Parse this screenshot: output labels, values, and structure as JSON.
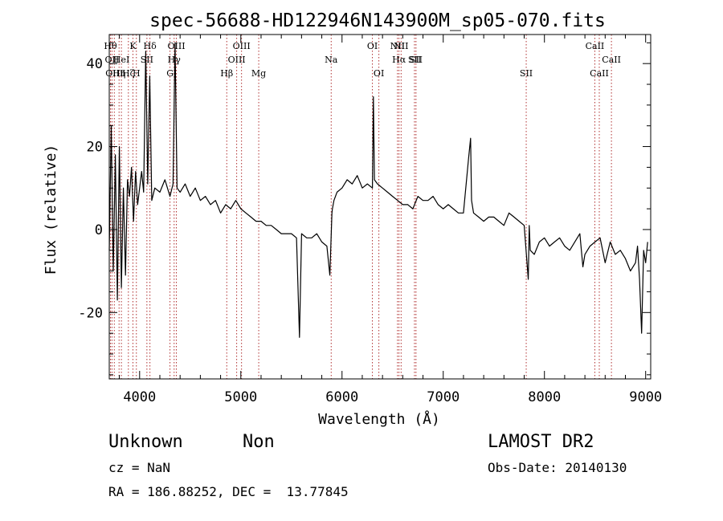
{
  "chart_data": {
    "type": "line",
    "title": "spec-56688-HD122946N143900M_sp05-070.fits",
    "xlabel": "Wavelength (Å)",
    "ylabel": "Flux (relative)",
    "xlim": [
      3700,
      9050
    ],
    "ylim": [
      -36,
      47
    ],
    "xticks": [
      4000,
      5000,
      6000,
      7000,
      8000,
      9000
    ],
    "yticks": [
      -20,
      0,
      20,
      40
    ],
    "grid": false,
    "series": [
      {
        "color": "#000000",
        "x": [
          3700,
          3720,
          3740,
          3760,
          3780,
          3800,
          3820,
          3840,
          3860,
          3880,
          3900,
          3920,
          3940,
          3960,
          3980,
          4000,
          4020,
          4040,
          4060,
          4080,
          4100,
          4120,
          4150,
          4200,
          4250,
          4300,
          4330,
          4350,
          4370,
          4400,
          4450,
          4500,
          4550,
          4600,
          4650,
          4700,
          4750,
          4800,
          4850,
          4900,
          4950,
          5000,
          5050,
          5100,
          5150,
          5200,
          5250,
          5300,
          5350,
          5400,
          5450,
          5500,
          5550,
          5580,
          5600,
          5650,
          5700,
          5750,
          5800,
          5850,
          5880,
          5900,
          5905,
          5920,
          5950,
          6000,
          6050,
          6100,
          6150,
          6200,
          6250,
          6300,
          6310,
          6320,
          6350,
          6400,
          6450,
          6500,
          6550,
          6600,
          6650,
          6700,
          6750,
          6800,
          6850,
          6900,
          6950,
          7000,
          7050,
          7100,
          7150,
          7200,
          7250,
          7270,
          7280,
          7300,
          7350,
          7400,
          7450,
          7500,
          7550,
          7600,
          7650,
          7700,
          7750,
          7800,
          7840,
          7850,
          7860,
          7900,
          7950,
          8000,
          8050,
          8100,
          8150,
          8200,
          8250,
          8300,
          8350,
          8380,
          8400,
          8450,
          8500,
          8550,
          8600,
          8650,
          8700,
          8750,
          8800,
          8850,
          8900,
          8920,
          8940,
          8960,
          8980,
          9000,
          9020
        ],
        "y": [
          -5,
          25,
          -10,
          18,
          -17,
          20,
          -14,
          10,
          -11,
          12,
          8,
          15,
          2,
          14,
          6,
          10,
          14,
          9,
          43,
          11,
          37,
          7,
          10,
          9,
          12,
          8,
          11,
          45,
          10,
          9,
          11,
          8,
          10,
          7,
          8,
          6,
          7,
          4,
          6,
          5,
          7,
          5,
          4,
          3,
          2,
          2,
          1,
          1,
          0,
          -1,
          -1,
          -1,
          -2,
          -26,
          -1,
          -2,
          -2,
          -1,
          -3,
          -4,
          -11,
          4,
          5,
          7,
          9,
          10,
          12,
          11,
          13,
          10,
          11,
          10,
          32,
          12,
          11,
          10,
          9,
          8,
          7,
          6,
          6,
          5,
          8,
          7,
          7,
          8,
          6,
          5,
          6,
          5,
          4,
          4,
          17,
          22,
          7,
          4,
          3,
          2,
          3,
          3,
          2,
          1,
          4,
          3,
          2,
          1,
          -12,
          1,
          -5,
          -6,
          -3,
          -2,
          -4,
          -3,
          -2,
          -4,
          -5,
          -3,
          -1,
          -9,
          -6,
          -4,
          -3,
          -2,
          -8,
          -3,
          -6,
          -5,
          -7,
          -10,
          -8,
          -4,
          -12,
          -25,
          -5,
          -8,
          -3
        ]
      }
    ],
    "lines": [
      {
        "x": 3712,
        "label": "Hθ",
        "row": 1
      },
      {
        "x": 3727,
        "label": "OII",
        "row": 2
      },
      {
        "x": 3750,
        "label": "OIII",
        "row": 3
      },
      {
        "x": 3797,
        "label": "Hη",
        "row": 3
      },
      {
        "x": 3820,
        "label": "HeI",
        "row": 2
      },
      {
        "x": 3889,
        "label": "Hζ",
        "row": 3
      },
      {
        "x": 3934,
        "label": "K",
        "row": 1
      },
      {
        "x": 3968,
        "label": "H",
        "row": 3
      },
      {
        "x": 4072,
        "label": "SII",
        "row": 2
      },
      {
        "x": 4102,
        "label": "Hδ",
        "row": 1
      },
      {
        "x": 4300,
        "label": "G",
        "row": 3
      },
      {
        "x": 4341,
        "label": "Hγ",
        "row": 2
      },
      {
        "x": 4363,
        "label": "OIII",
        "row": 1
      },
      {
        "x": 4861,
        "label": "Hβ",
        "row": 3
      },
      {
        "x": 4959,
        "label": "OIII",
        "row": 2
      },
      {
        "x": 5007,
        "label": "OIII",
        "row": 1
      },
      {
        "x": 5177,
        "label": "Mg",
        "row": 3
      },
      {
        "x": 5893,
        "label": "Na",
        "row": 2
      },
      {
        "x": 6300,
        "label": "OI",
        "row": 1
      },
      {
        "x": 6364,
        "label": "OI",
        "row": 3
      },
      {
        "x": 6548,
        "label": "NII",
        "row": 1
      },
      {
        "x": 6563,
        "label": "Hα",
        "row": 2
      },
      {
        "x": 6584,
        "label": "NII",
        "row": 1
      },
      {
        "x": 6716,
        "label": "SII",
        "row": 2
      },
      {
        "x": 6731,
        "label": "SII",
        "row": 2
      },
      {
        "x": 7820,
        "label": "SII",
        "row": 3
      },
      {
        "x": 8498,
        "label": "CaII",
        "row": 1
      },
      {
        "x": 8542,
        "label": "CaII",
        "row": 3
      },
      {
        "x": 8662,
        "label": "CaII",
        "row": 2
      }
    ]
  },
  "info": {
    "object": "Unknown",
    "class": "Non",
    "survey": "LAMOST DR2",
    "cz": "cz = NaN",
    "obs_date": "Obs-Date: 20140130",
    "coords": "RA = 186.88252, DEC =  13.77845"
  }
}
